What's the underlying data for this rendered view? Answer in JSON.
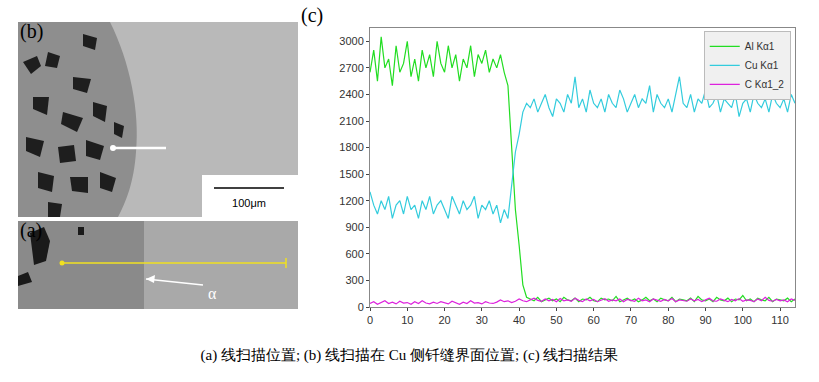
{
  "panels": {
    "a": {
      "label": "(a)",
      "annotation": "α"
    },
    "b": {
      "label": "(b)",
      "scale_bar": "100μm"
    },
    "c": {
      "label": "(c)"
    }
  },
  "caption": "(a) 线扫描位置; (b) 线扫描在 Cu 侧钎缝界面位置; (c) 线扫描结果",
  "chart_data": {
    "type": "line",
    "legend": "top right",
    "grid": false,
    "xlim": [
      0,
      114
    ],
    "xticks": [
      0,
      10,
      20,
      30,
      40,
      50,
      60,
      70,
      80,
      90,
      100,
      110
    ],
    "ylim": [
      0,
      3150
    ],
    "yticks": [
      0,
      300,
      600,
      900,
      1200,
      1500,
      1800,
      2100,
      2400,
      2700,
      3000
    ],
    "x": [
      0,
      1,
      2,
      3,
      4,
      5,
      6,
      7,
      8,
      9,
      10,
      11,
      12,
      13,
      14,
      15,
      16,
      17,
      18,
      19,
      20,
      21,
      22,
      23,
      24,
      25,
      26,
      27,
      28,
      29,
      30,
      31,
      32,
      33,
      34,
      35,
      36,
      37,
      38,
      39,
      40,
      41,
      42,
      43,
      44,
      45,
      46,
      47,
      48,
      49,
      50,
      51,
      52,
      53,
      54,
      55,
      56,
      57,
      58,
      59,
      60,
      61,
      62,
      63,
      64,
      65,
      66,
      67,
      68,
      69,
      70,
      71,
      72,
      73,
      74,
      75,
      76,
      77,
      78,
      79,
      80,
      81,
      82,
      83,
      84,
      85,
      86,
      87,
      88,
      89,
      90,
      91,
      92,
      93,
      94,
      95,
      96,
      97,
      98,
      99,
      100,
      101,
      102,
      103,
      104,
      105,
      106,
      107,
      108,
      109,
      110,
      111,
      112,
      113,
      114
    ],
    "series": [
      {
        "name": "Al Kα1",
        "color": "#22dd22",
        "values": [
          2650,
          2900,
          2550,
          3050,
          2700,
          2800,
          2500,
          2950,
          2650,
          2750,
          3000,
          2600,
          2800,
          2550,
          2900,
          2700,
          2850,
          2600,
          3000,
          2750,
          2650,
          2950,
          2700,
          2850,
          2550,
          2800,
          2700,
          2950,
          2600,
          2850,
          2750,
          2900,
          2650,
          2800,
          2700,
          2850,
          2650,
          2500,
          1800,
          1100,
          700,
          250,
          110,
          90,
          70,
          110,
          60,
          80,
          100,
          70,
          90,
          60,
          110,
          80,
          70,
          100,
          60,
          90,
          80,
          110,
          70,
          60,
          100,
          80,
          90,
          70,
          120,
          60,
          80,
          100,
          70,
          90,
          60,
          80,
          110,
          70,
          90,
          60,
          100,
          80,
          70,
          110,
          60,
          90,
          80,
          70,
          100,
          60,
          120,
          80,
          70,
          90,
          60,
          110,
          80,
          70,
          100,
          60,
          90,
          80,
          130,
          70,
          90,
          60,
          100,
          80,
          70,
          110,
          60,
          90,
          80,
          70,
          100,
          60,
          90
        ]
      },
      {
        "name": "Cu Kα1",
        "color": "#33ccdd",
        "values": [
          1300,
          1150,
          1050,
          1200,
          1100,
          1250,
          1000,
          1150,
          1200,
          1050,
          1250,
          1100,
          1150,
          1000,
          1200,
          1100,
          1250,
          1050,
          1150,
          1200,
          1100,
          1000,
          1250,
          1150,
          1050,
          1200,
          1100,
          1150,
          1250,
          1000,
          1150,
          1100,
          1200,
          1050,
          1150,
          950,
          1100,
          1000,
          1400,
          1750,
          1950,
          2200,
          2300,
          2250,
          2350,
          2200,
          2300,
          2400,
          2250,
          2150,
          2350,
          2300,
          2200,
          2400,
          2300,
          2600,
          2250,
          2350,
          2200,
          2450,
          2300,
          2250,
          2350,
          2200,
          2400,
          2300,
          2250,
          2450,
          2350,
          2200,
          2300,
          2400,
          2250,
          2350,
          2300,
          2500,
          2200,
          2400,
          2300,
          2250,
          2350,
          2200,
          2400,
          2600,
          2300,
          2250,
          2400,
          2200,
          2350,
          2300,
          2450,
          2250,
          2300,
          2400,
          2200,
          2350,
          2300,
          2250,
          2400,
          2150,
          2300,
          2350,
          2200,
          2400,
          2300,
          2250,
          2350,
          2200,
          2400,
          2300,
          2250,
          2350,
          2200,
          2400,
          2300
        ]
      },
      {
        "name": "C Kα1_2",
        "color": "#dd22dd",
        "values": [
          40,
          60,
          30,
          50,
          70,
          40,
          55,
          35,
          65,
          45,
          50,
          30,
          60,
          40,
          70,
          45,
          35,
          55,
          40,
          60,
          45,
          35,
          65,
          50,
          30,
          55,
          40,
          70,
          45,
          50,
          35,
          60,
          45,
          40,
          55,
          80,
          60,
          70,
          50,
          65,
          90,
          70,
          60,
          80,
          100,
          75,
          65,
          90,
          70,
          85,
          60,
          95,
          70,
          80,
          65,
          100,
          75,
          60,
          90,
          70,
          85,
          60,
          75,
          95,
          65,
          80,
          70,
          90,
          60,
          85,
          75,
          65,
          100,
          70,
          80,
          60,
          90,
          75,
          65,
          85,
          70,
          95,
          60,
          80,
          75,
          65,
          90,
          70,
          85,
          60,
          80,
          100,
          70,
          65,
          90,
          75,
          60,
          85,
          70,
          95,
          65,
          80,
          75,
          60,
          90,
          70,
          110,
          75,
          65,
          85,
          70,
          80,
          60,
          90,
          75
        ]
      }
    ]
  }
}
